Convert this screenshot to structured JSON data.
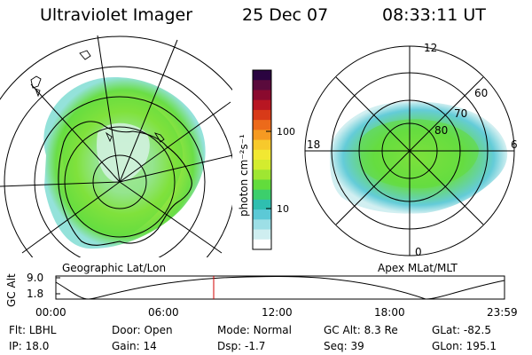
{
  "header": {
    "instrument": "Ultraviolet Imager",
    "date": "25 Dec 07",
    "time": "08:33:11 UT"
  },
  "left_panel": {
    "caption": "Geographic Lat/Lon"
  },
  "right_panel": {
    "caption": "Apex MLat/MLT",
    "mlt_labels": [
      "12",
      "18",
      "6",
      "0"
    ],
    "mlat_labels": [
      "60",
      "70",
      "80"
    ]
  },
  "colorbar": {
    "label": "photon cm⁻²s⁻¹",
    "tick_labels": [
      "100",
      "10"
    ],
    "colors": [
      "#ffffff",
      "#cfeef0",
      "#9ddfe6",
      "#5cc9d6",
      "#2fbfb0",
      "#3ccf6c",
      "#62dc3c",
      "#9fe632",
      "#d3ec2e",
      "#f2e832",
      "#f7c92c",
      "#f59a22",
      "#ec6a1a",
      "#d83a18",
      "#b81622",
      "#8a0a2e",
      "#5a0a3c",
      "#2a0440"
    ]
  },
  "altitude_strip": {
    "ylabel": "GC Alt",
    "y_ticks": [
      "9.0",
      "1.8"
    ],
    "x_ticks": [
      "00:00",
      "06:00",
      "12:00",
      "18:00",
      "23:59"
    ],
    "current_time_marker": "08:33"
  },
  "footer": {
    "row1": [
      {
        "label": "Flt:",
        "value": "LBHL"
      },
      {
        "label": "Door:",
        "value": "Open"
      },
      {
        "label": "Mode:",
        "value": "Normal"
      },
      {
        "label": "GC Alt:",
        "value": "8.3 Re"
      },
      {
        "label": "GLat:",
        "value": "-82.5"
      }
    ],
    "row2": [
      {
        "label": "IP:",
        "value": "18.0"
      },
      {
        "label": "Gain:",
        "value": "14"
      },
      {
        "label": "Dsp:",
        "value": "-1.7"
      },
      {
        "label": "Seq:",
        "value": "39"
      },
      {
        "label": "GLon:",
        "value": "195.1"
      }
    ]
  }
}
